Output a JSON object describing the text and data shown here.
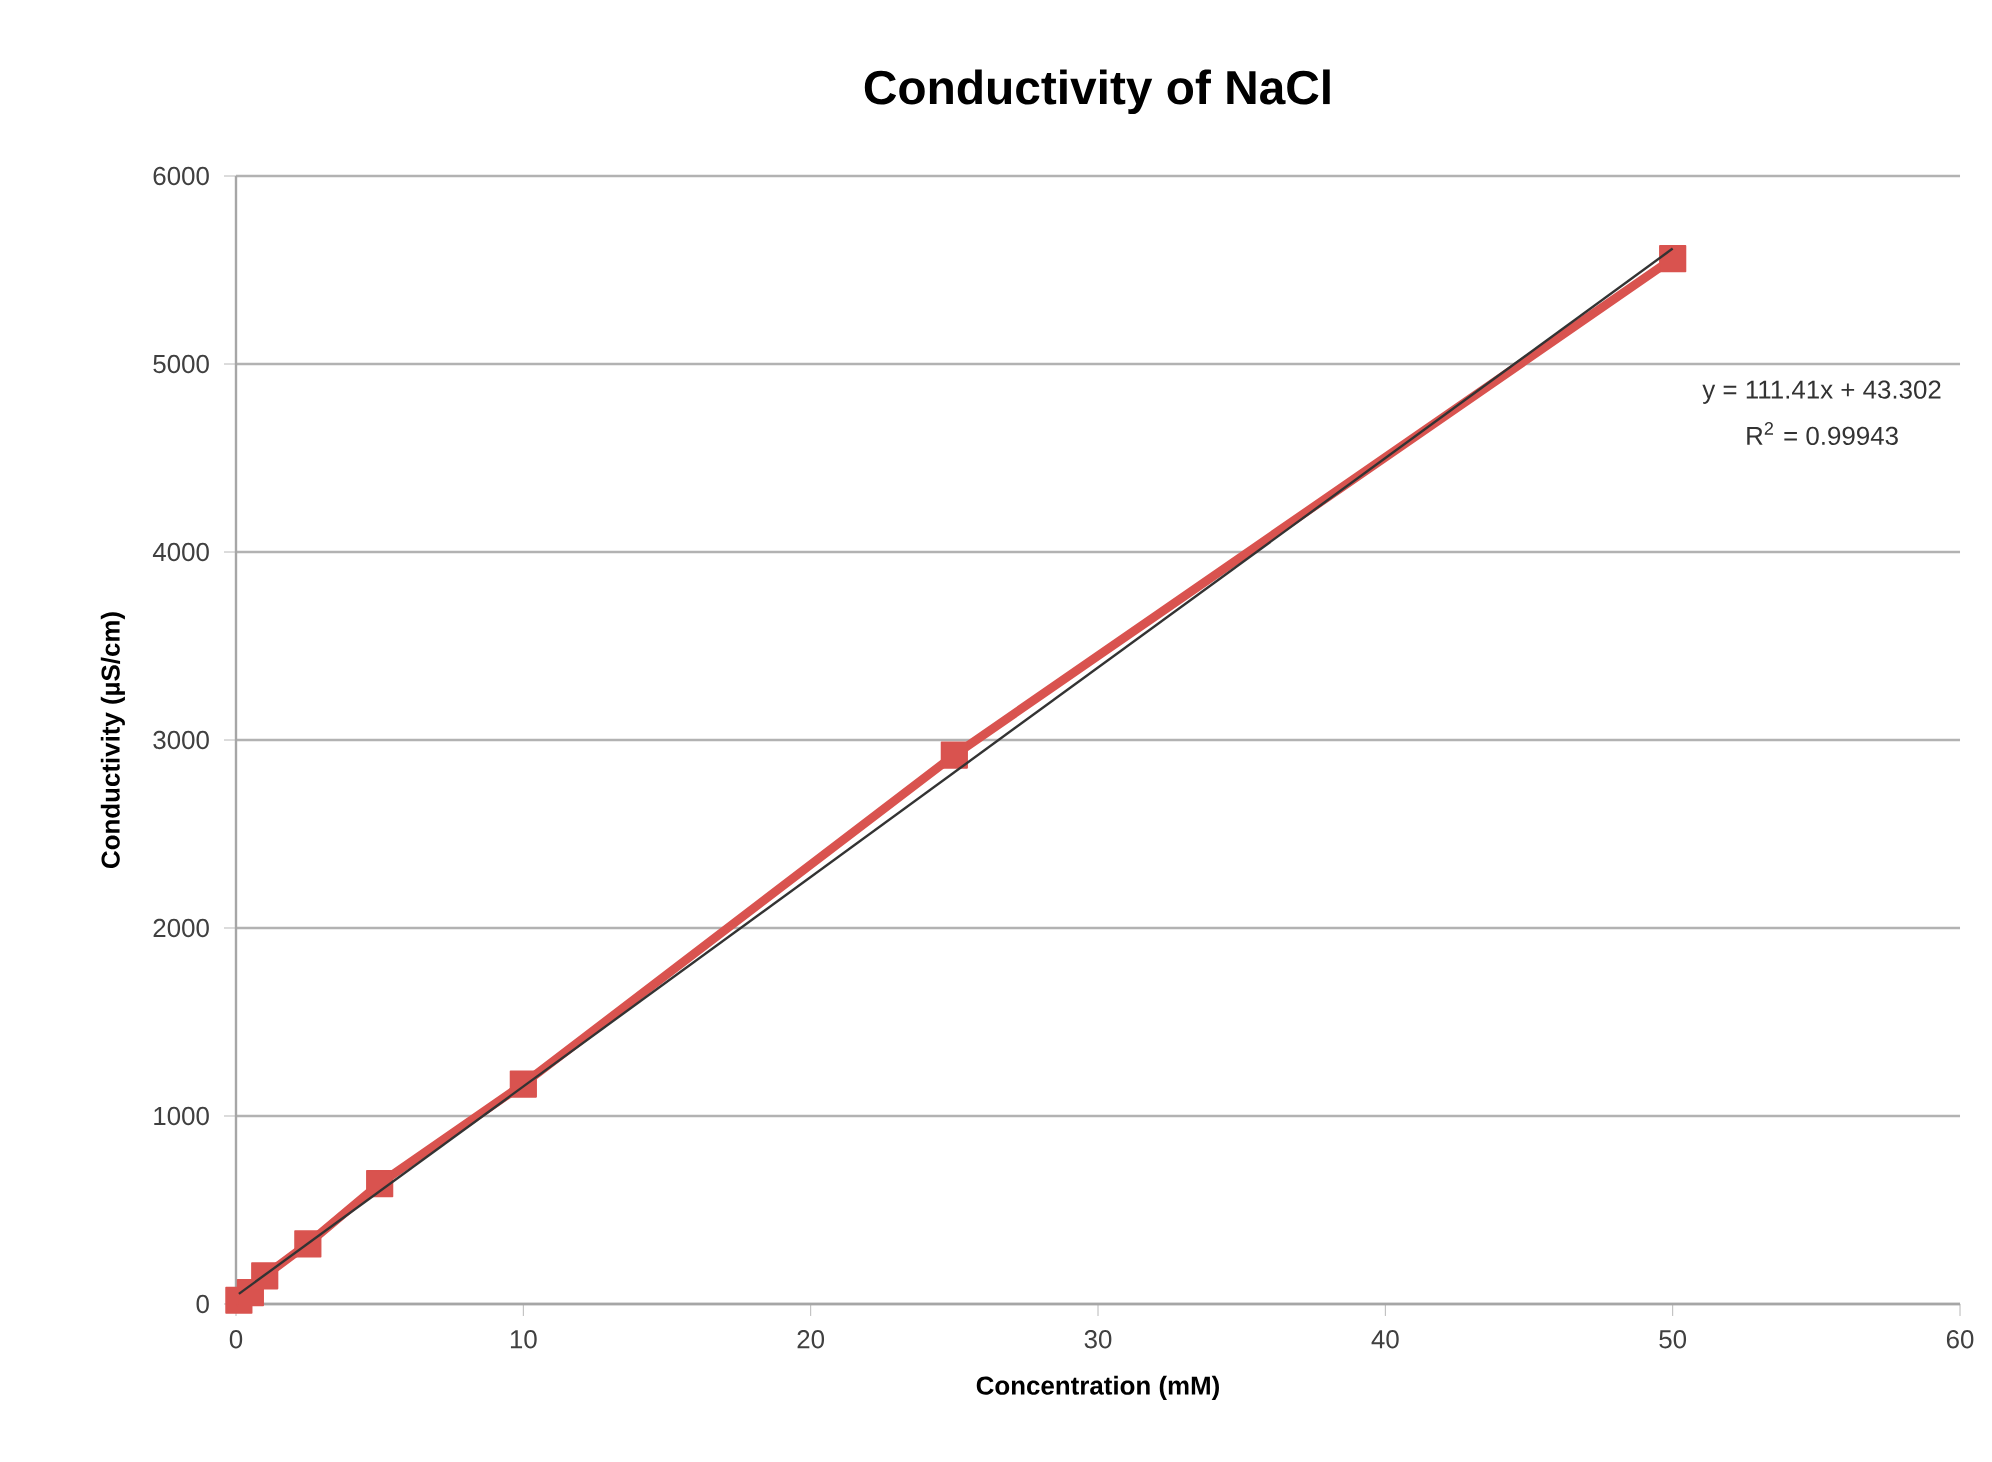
{
  "chart_data": {
    "type": "line",
    "title": "Conductivity of NaCl",
    "xlabel": "Concentration (mM)",
    "ylabel": "Conductivity (µS/cm)",
    "series": [
      {
        "color": "#d9534f",
        "marker": "square",
        "x": [
          0.1,
          0.5,
          1,
          2.5,
          5,
          10,
          25,
          50
        ],
        "values": [
          20,
          60,
          150,
          320,
          640,
          1170,
          2920,
          5560
        ]
      },
      {
        "color": "#333333",
        "marker": "none",
        "x": [
          0.1,
          50
        ],
        "values": [
          54,
          5614
        ]
      }
    ],
    "annotations": [
      "y = 111.41x + 43.302",
      "R$^{2}$ = 0.99943"
    ],
    "xlim": [
      0,
      60
    ],
    "xticks": [
      0,
      10,
      20,
      30,
      40,
      50,
      60
    ],
    "ylim": [
      0,
      6000
    ],
    "yticks": [
      0,
      1000,
      2000,
      3000,
      4000,
      5000,
      6000
    ],
    "grid": "y"
  }
}
